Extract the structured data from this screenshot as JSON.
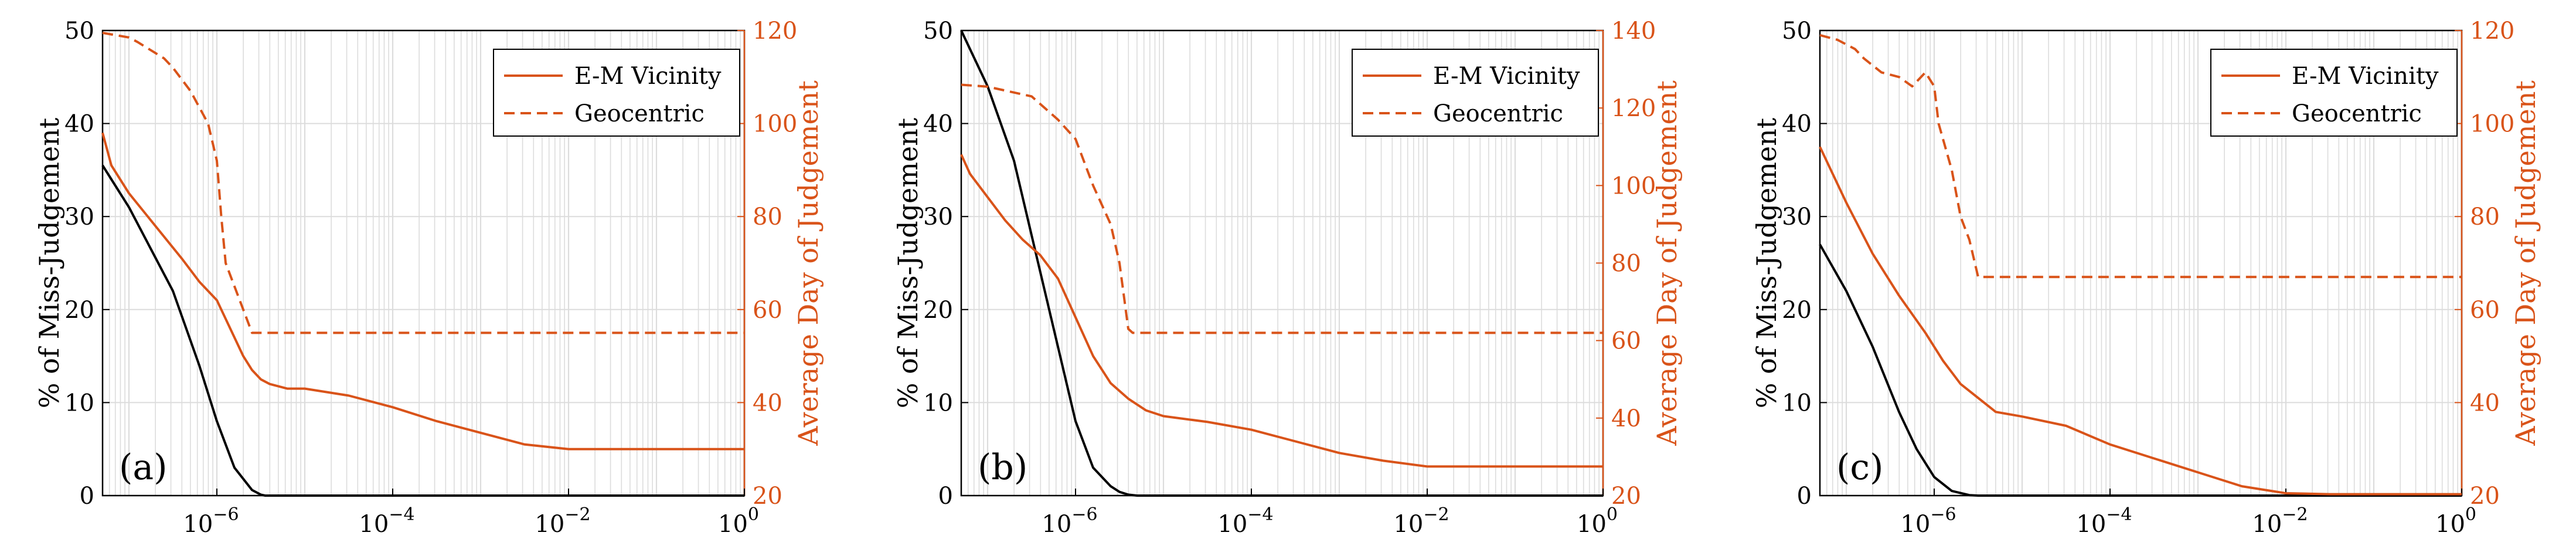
{
  "figure": {
    "colors": {
      "left_axis": "#000000",
      "right_axis": "#D95319",
      "grid": "#dcdcdc"
    },
    "legend_labels": [
      "E-M Vicinity",
      "Geocentric"
    ]
  },
  "chart_data": [
    {
      "type": "line",
      "panel_label": "(a)",
      "xscale": "log",
      "xlim_exp": [
        -7.3,
        0
      ],
      "xtick_exps": [
        -6,
        -4,
        -2,
        0
      ],
      "xtick_base": "10",
      "ylabel_left": "% of Miss-Judgement",
      "ylabel_right": "Average Day of Judgement",
      "ylim_left": [
        0,
        50
      ],
      "yticks_left": [
        0,
        10,
        20,
        30,
        40,
        50
      ],
      "ylim_right": [
        20,
        120
      ],
      "yticks_right": [
        20,
        40,
        60,
        80,
        100,
        120
      ],
      "legend": "top-right",
      "grid": true,
      "series": [
        {
          "name": "% of Miss-Judgement",
          "axis": "left",
          "style": "solid",
          "color": "#000000",
          "x_exp": [
            -7.3,
            -7.0,
            -6.5,
            -6.2,
            -6.0,
            -5.8,
            -5.6,
            -5.5,
            -5.45,
            -5.3,
            0
          ],
          "values": [
            35.5,
            31,
            22,
            14,
            8,
            3,
            0.6,
            0.1,
            0,
            0,
            0
          ]
        },
        {
          "name": "E-M Vicinity",
          "axis": "right",
          "style": "solid",
          "color": "#D95319",
          "x_exp": [
            -7.3,
            -7.2,
            -7.0,
            -6.7,
            -6.4,
            -6.2,
            -6.0,
            -5.8,
            -5.7,
            -5.6,
            -5.5,
            -5.4,
            -5.2,
            -5.0,
            -4.5,
            -4.0,
            -3.5,
            -3.0,
            -2.5,
            -2.0,
            0
          ],
          "values": [
            98,
            91,
            85,
            78,
            71,
            66,
            62,
            54,
            50,
            47,
            45,
            44,
            43,
            43,
            41.5,
            39,
            36,
            33.5,
            31,
            30,
            30
          ]
        },
        {
          "name": "Geocentric",
          "axis": "right",
          "style": "dashed",
          "color": "#D95319",
          "x_exp": [
            -7.3,
            -7.0,
            -6.9,
            -6.6,
            -6.5,
            -6.3,
            -6.1,
            -6.0,
            -5.95,
            -5.9,
            -5.7,
            -5.6,
            0
          ],
          "values": [
            119.5,
            118.5,
            117.5,
            114,
            112,
            107,
            100,
            92,
            80,
            70,
            60,
            55,
            55
          ]
        }
      ]
    },
    {
      "type": "line",
      "panel_label": "(b)",
      "xscale": "log",
      "xlim_exp": [
        -7.3,
        0
      ],
      "xtick_exps": [
        -6,
        -4,
        -2,
        0
      ],
      "xtick_base": "10",
      "ylabel_left": "% of Miss-Judgement",
      "ylabel_right": "Average Day of Judgement",
      "ylim_left": [
        0,
        50
      ],
      "yticks_left": [
        0,
        10,
        20,
        30,
        40,
        50
      ],
      "ylim_right": [
        20,
        140
      ],
      "yticks_right": [
        20,
        40,
        60,
        80,
        100,
        120,
        140
      ],
      "legend": "top-right",
      "grid": true,
      "series": [
        {
          "name": "% of Miss-Judgement",
          "axis": "left",
          "style": "solid",
          "color": "#000000",
          "x_exp": [
            -7.3,
            -7.0,
            -6.7,
            -6.5,
            -6.3,
            -6.0,
            -5.8,
            -5.6,
            -5.5,
            -5.4,
            -5.3,
            -5.2,
            0
          ],
          "values": [
            50,
            44,
            36,
            28,
            20,
            8,
            3,
            1,
            0.4,
            0.1,
            0,
            0,
            0
          ]
        },
        {
          "name": "E-M Vicinity",
          "axis": "right",
          "style": "solid",
          "color": "#D95319",
          "x_exp": [
            -7.3,
            -7.2,
            -7.0,
            -6.8,
            -6.6,
            -6.4,
            -6.2,
            -6.0,
            -5.8,
            -5.6,
            -5.4,
            -5.2,
            -5.0,
            -4.5,
            -4.0,
            -3.5,
            -3.0,
            -2.5,
            -2.0,
            0
          ],
          "values": [
            108,
            103,
            97,
            91,
            86,
            82,
            76,
            66,
            56,
            49,
            45,
            42,
            40.5,
            39,
            37,
            34,
            31,
            29,
            27.5,
            27.5
          ]
        },
        {
          "name": "Geocentric",
          "axis": "right",
          "style": "dashed",
          "color": "#D95319",
          "x_exp": [
            -7.3,
            -7.0,
            -6.5,
            -6.2,
            -6.0,
            -5.9,
            -5.8,
            -5.6,
            -5.5,
            -5.4,
            -5.35,
            0
          ],
          "values": [
            126,
            125.5,
            123,
            117,
            112,
            106,
            100,
            90,
            80,
            63,
            62,
            62
          ]
        }
      ]
    },
    {
      "type": "line",
      "panel_label": "(c)",
      "xscale": "log",
      "xlim_exp": [
        -7.3,
        0
      ],
      "xtick_exps": [
        -6,
        -4,
        -2,
        0
      ],
      "xtick_base": "10",
      "ylabel_left": "% of Miss-Judgement",
      "ylabel_right": "Average Day of Judgement",
      "ylim_left": [
        0,
        50
      ],
      "yticks_left": [
        0,
        10,
        20,
        30,
        40,
        50
      ],
      "ylim_right": [
        20,
        120
      ],
      "yticks_right": [
        20,
        40,
        60,
        80,
        100,
        120
      ],
      "legend": "top-right",
      "grid": true,
      "series": [
        {
          "name": "% of Miss-Judgement",
          "axis": "left",
          "style": "solid",
          "color": "#000000",
          "x_exp": [
            -7.3,
            -7.0,
            -6.7,
            -6.4,
            -6.2,
            -6.0,
            -5.8,
            -5.6,
            -5.5,
            -5.3,
            0
          ],
          "values": [
            27,
            22,
            16,
            9,
            5,
            2,
            0.5,
            0.05,
            0,
            0,
            0
          ]
        },
        {
          "name": "E-M Vicinity",
          "axis": "right",
          "style": "solid",
          "color": "#D95319",
          "x_exp": [
            -7.3,
            -7.0,
            -6.7,
            -6.4,
            -6.1,
            -5.9,
            -5.7,
            -5.5,
            -5.3,
            -5.0,
            -4.5,
            -4.0,
            -3.5,
            -3.0,
            -2.5,
            -2.0,
            -1.5,
            0
          ],
          "values": [
            95,
            83,
            72,
            63,
            55,
            49,
            44,
            41,
            38,
            37,
            35,
            31,
            28,
            25,
            22,
            20.5,
            20.3,
            20.3
          ]
        },
        {
          "name": "Geocentric",
          "axis": "right",
          "style": "dashed",
          "color": "#D95319",
          "x_exp": [
            -7.3,
            -7.1,
            -6.9,
            -6.8,
            -6.6,
            -6.4,
            -6.25,
            -6.1,
            -6.0,
            -5.95,
            -5.8,
            -5.7,
            -5.6,
            -5.5,
            0
          ],
          "values": [
            119,
            118,
            116,
            114,
            111,
            110,
            108,
            111,
            108,
            100,
            90,
            80,
            75,
            67,
            67
          ]
        }
      ]
    }
  ]
}
